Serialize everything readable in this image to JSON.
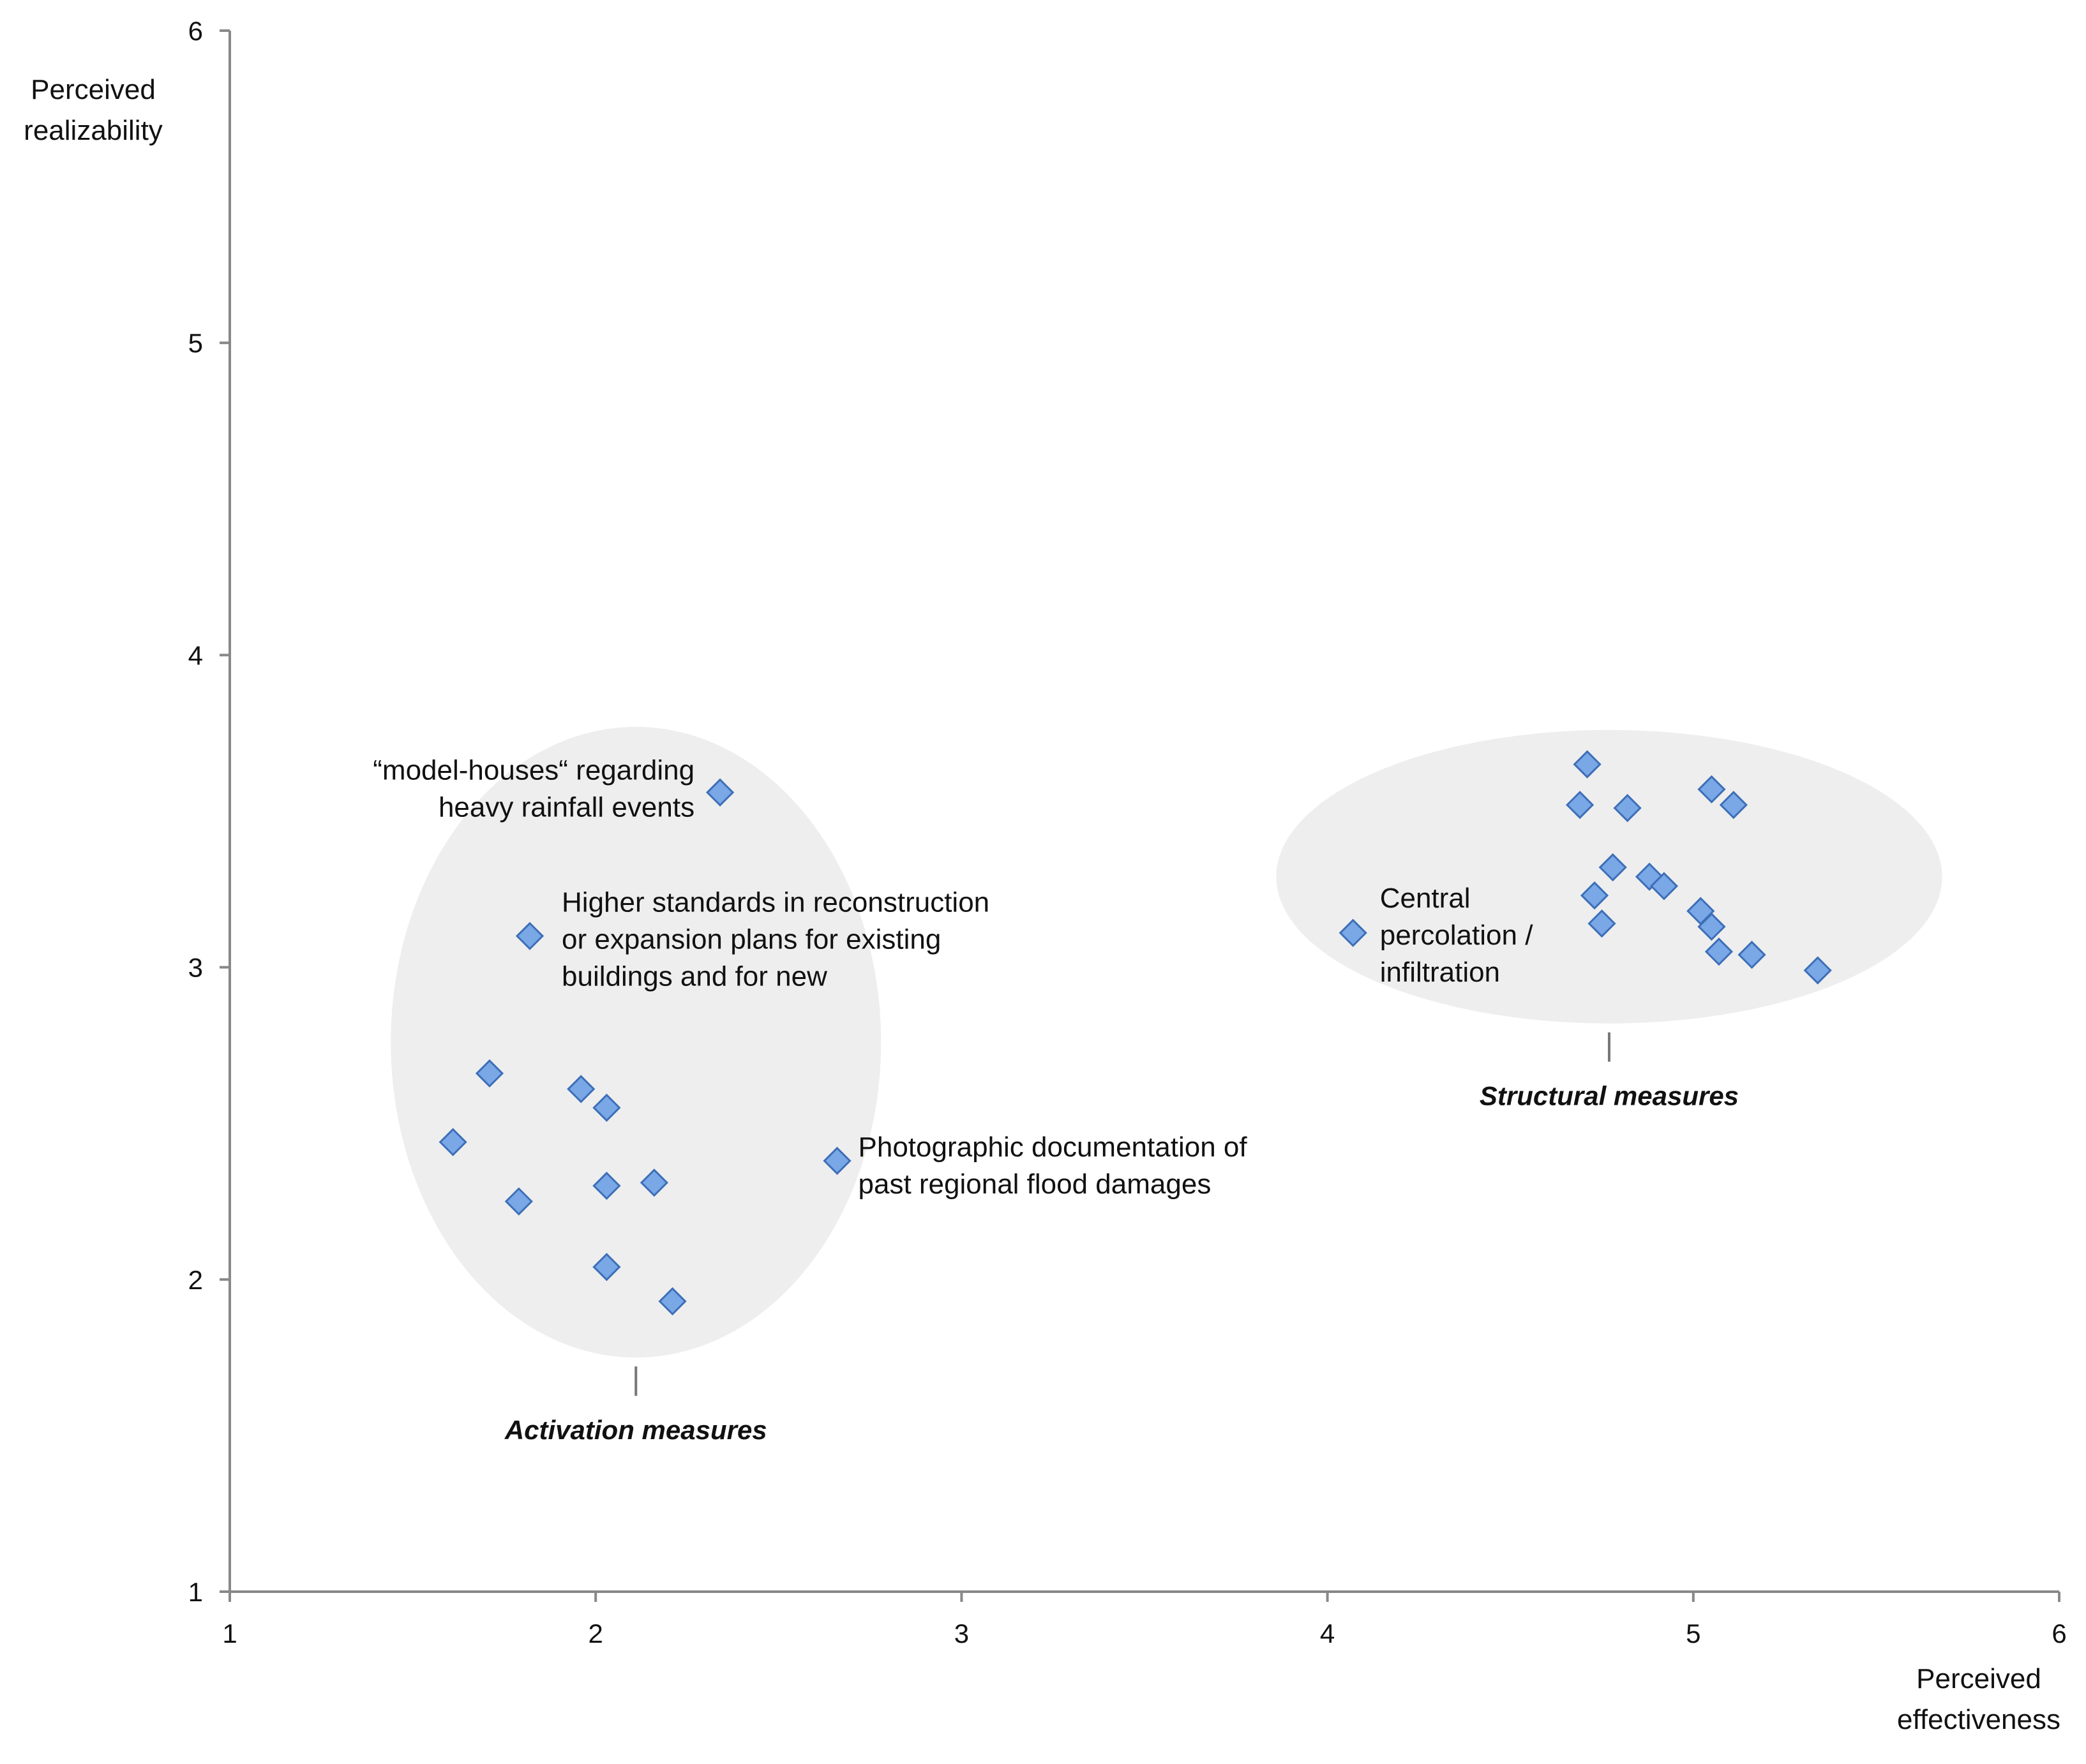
{
  "chart_data": {
    "type": "scatter",
    "title": "",
    "xlabel": "Perceived effectiveness",
    "ylabel": "Perceived realizability",
    "xlim": [
      1,
      6
    ],
    "ylim": [
      1,
      6
    ],
    "x_ticks": [
      1,
      2,
      3,
      4,
      5,
      6
    ],
    "y_ticks": [
      1,
      2,
      3,
      4,
      5,
      6
    ],
    "grid": false,
    "legend": "none",
    "colors": {
      "marker_fill": "#7aa7e6",
      "marker_stroke": "#3d6fb8",
      "ellipse_fill": "#eeeeee",
      "axis": "#888888"
    },
    "series": [
      {
        "name": "Activation measures",
        "points": [
          {
            "x": 2.34,
            "y": 3.56
          },
          {
            "x": 1.82,
            "y": 3.1
          },
          {
            "x": 1.71,
            "y": 2.66
          },
          {
            "x": 1.96,
            "y": 2.61
          },
          {
            "x": 2.03,
            "y": 2.55
          },
          {
            "x": 1.61,
            "y": 2.44
          },
          {
            "x": 2.66,
            "y": 2.38
          },
          {
            "x": 2.16,
            "y": 2.31
          },
          {
            "x": 2.03,
            "y": 2.3
          },
          {
            "x": 1.79,
            "y": 2.25
          },
          {
            "x": 2.03,
            "y": 2.04
          },
          {
            "x": 2.21,
            "y": 1.93
          }
        ]
      },
      {
        "name": "Structural measures",
        "points": [
          {
            "x": 4.71,
            "y": 3.65
          },
          {
            "x": 5.05,
            "y": 3.57
          },
          {
            "x": 4.69,
            "y": 3.52
          },
          {
            "x": 5.11,
            "y": 3.52
          },
          {
            "x": 4.82,
            "y": 3.51
          },
          {
            "x": 4.78,
            "y": 3.32
          },
          {
            "x": 4.88,
            "y": 3.29
          },
          {
            "x": 4.92,
            "y": 3.26
          },
          {
            "x": 4.73,
            "y": 3.23
          },
          {
            "x": 5.02,
            "y": 3.18
          },
          {
            "x": 4.75,
            "y": 3.14
          },
          {
            "x": 5.05,
            "y": 3.13
          },
          {
            "x": 4.07,
            "y": 3.11
          },
          {
            "x": 5.07,
            "y": 3.05
          },
          {
            "x": 5.16,
            "y": 3.04
          },
          {
            "x": 5.34,
            "y": 2.99
          }
        ]
      }
    ],
    "annotations": [
      {
        "lines": [
          "“model-houses“ regarding",
          "heavy rainfall events"
        ],
        "x": 2.34,
        "y": 3.56
      },
      {
        "lines": [
          "Higher standards in reconstruction",
          "or expansion plans for existing",
          "buildings and for new"
        ],
        "x": 1.82,
        "y": 3.1
      },
      {
        "lines": [
          "Photographic documentation of",
          "past regional flood damages"
        ],
        "x": 2.66,
        "y": 2.38
      },
      {
        "lines": [
          "Central",
          "percolation /",
          "infiltration"
        ],
        "x": 4.07,
        "y": 3.11
      }
    ],
    "groups": [
      {
        "label": "Activation measures",
        "center": [
          2.11,
          2.76
        ],
        "radius": [
          0.67,
          1.01
        ]
      },
      {
        "label": "Structural measures",
        "center": [
          4.77,
          3.29
        ],
        "radius": [
          0.91,
          0.47
        ]
      }
    ]
  }
}
